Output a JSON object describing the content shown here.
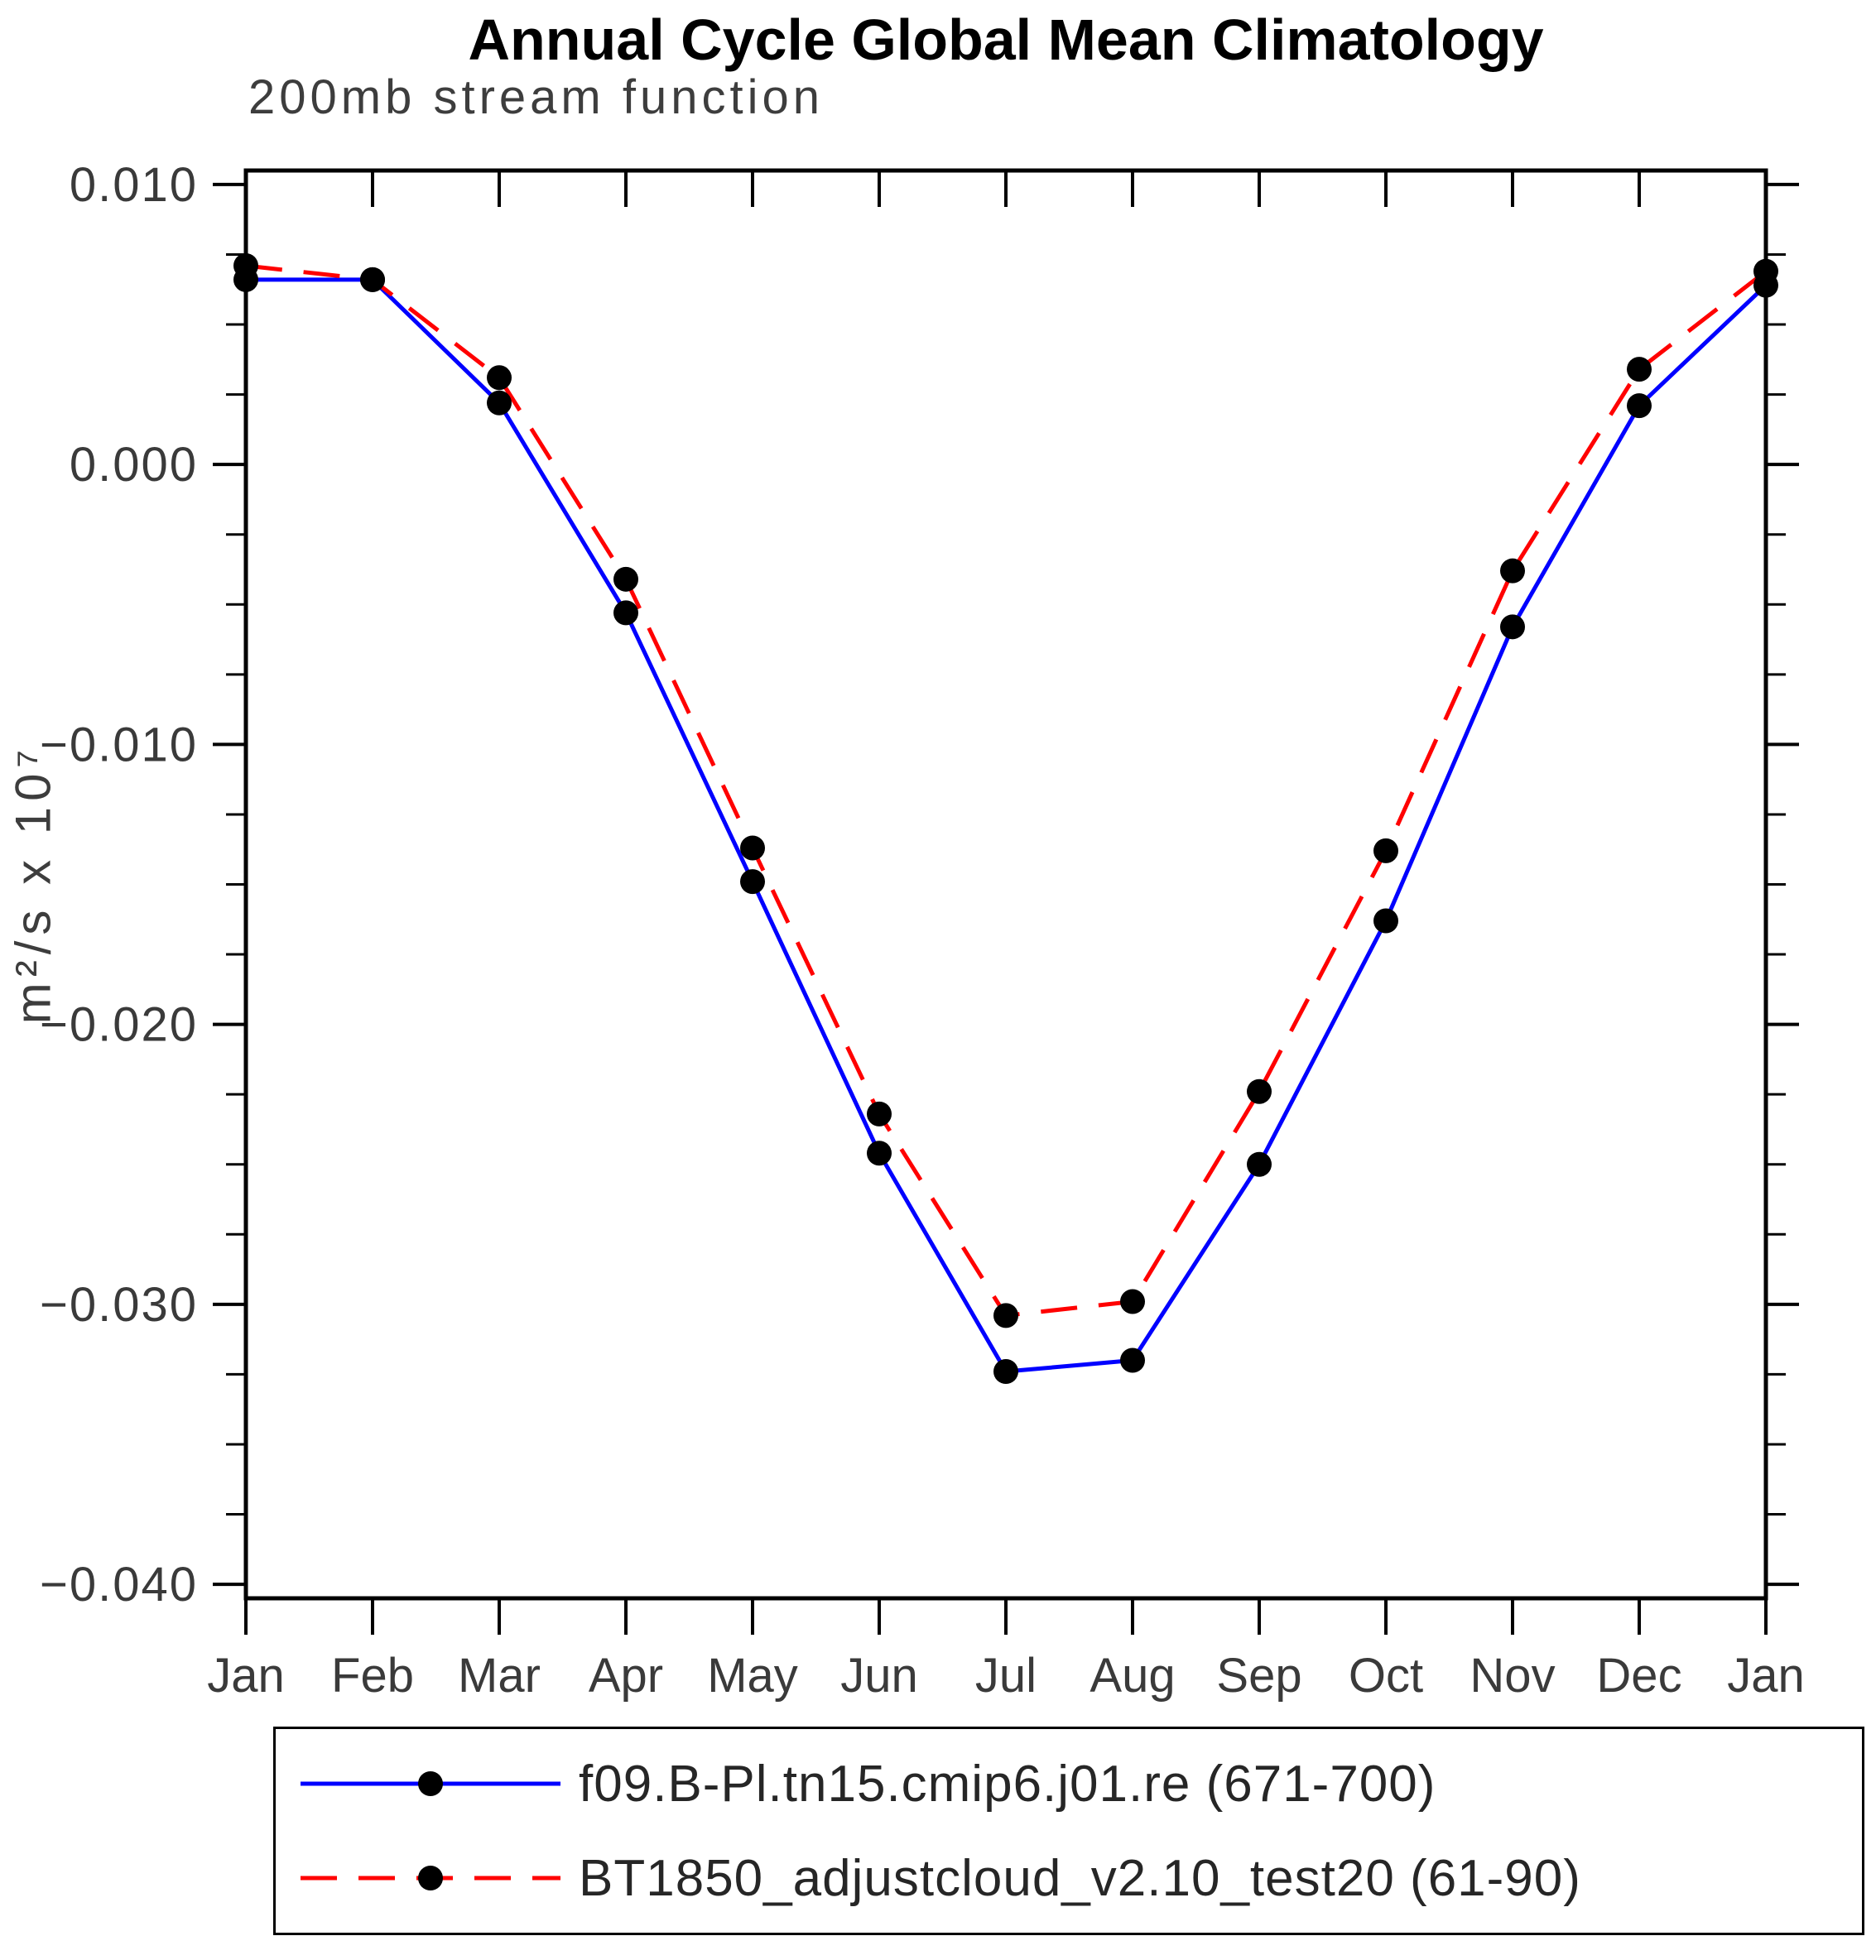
{
  "title": "Annual Cycle Global Mean Climatology",
  "subtitle": "200mb stream function",
  "chart_data": {
    "type": "line",
    "ylabel": "m²/s x 10⁷",
    "x_categories": [
      "Jan",
      "Feb",
      "Mar",
      "Apr",
      "May",
      "Jun",
      "Jul",
      "Aug",
      "Sep",
      "Oct",
      "Nov",
      "Dec",
      "Jan"
    ],
    "ylim": [
      -0.04,
      0.01
    ],
    "ytick_values": [
      0.01,
      0.0,
      -0.01,
      -0.02,
      -0.03,
      -0.04
    ],
    "ytick_labels": [
      "0.010",
      "0.000",
      "−0.010",
      "−0.020",
      "−0.030",
      "−0.040"
    ],
    "ytick_minor_step": 0.0025,
    "grid": false,
    "legend_position": "bottom",
    "axis_color": "#000000",
    "marker_color": "#000000",
    "series": [
      {
        "name": "f09.B-Pl.tn15.cmip6.j01.re (671-700)",
        "color": "#0000ff",
        "style": "solid",
        "values": [
          0.0066,
          0.0066,
          0.0022,
          -0.0053,
          -0.0149,
          -0.0246,
          -0.0324,
          -0.032,
          -0.025,
          -0.0163,
          -0.0058,
          0.0021,
          0.0064
        ]
      },
      {
        "name": "BT1850_adjustcloud_v2.10_test20 (61-90)",
        "color": "#ff0000",
        "style": "dashed",
        "values": [
          0.0071,
          0.0066,
          0.0031,
          -0.0041,
          -0.0137,
          -0.0232,
          -0.0304,
          -0.0299,
          -0.0224,
          -0.0138,
          -0.0038,
          0.0034,
          0.0069
        ]
      }
    ]
  }
}
